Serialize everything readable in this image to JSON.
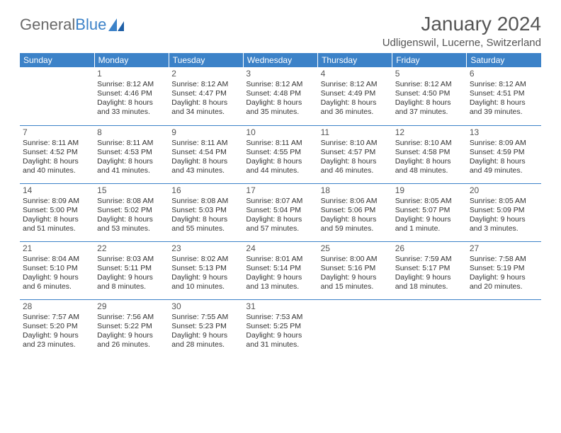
{
  "logo": {
    "word1": "General",
    "word2": "Blue"
  },
  "title": "January 2024",
  "location": "Udligenswil, Lucerne, Switzerland",
  "colors": {
    "header_bg": "#3c82c8",
    "header_text": "#ffffff",
    "body_text": "#333333",
    "title_text": "#555555",
    "logo_gray": "#6a6a6a",
    "logo_blue": "#3c82c8",
    "rule": "#3c82c8",
    "background": "#ffffff"
  },
  "day_headers": [
    "Sunday",
    "Monday",
    "Tuesday",
    "Wednesday",
    "Thursday",
    "Friday",
    "Saturday"
  ],
  "weeks": [
    [
      null,
      {
        "n": "1",
        "sr": "8:12 AM",
        "ss": "4:46 PM",
        "dl": "8 hours and 33 minutes."
      },
      {
        "n": "2",
        "sr": "8:12 AM",
        "ss": "4:47 PM",
        "dl": "8 hours and 34 minutes."
      },
      {
        "n": "3",
        "sr": "8:12 AM",
        "ss": "4:48 PM",
        "dl": "8 hours and 35 minutes."
      },
      {
        "n": "4",
        "sr": "8:12 AM",
        "ss": "4:49 PM",
        "dl": "8 hours and 36 minutes."
      },
      {
        "n": "5",
        "sr": "8:12 AM",
        "ss": "4:50 PM",
        "dl": "8 hours and 37 minutes."
      },
      {
        "n": "6",
        "sr": "8:12 AM",
        "ss": "4:51 PM",
        "dl": "8 hours and 39 minutes."
      }
    ],
    [
      {
        "n": "7",
        "sr": "8:11 AM",
        "ss": "4:52 PM",
        "dl": "8 hours and 40 minutes."
      },
      {
        "n": "8",
        "sr": "8:11 AM",
        "ss": "4:53 PM",
        "dl": "8 hours and 41 minutes."
      },
      {
        "n": "9",
        "sr": "8:11 AM",
        "ss": "4:54 PM",
        "dl": "8 hours and 43 minutes."
      },
      {
        "n": "10",
        "sr": "8:11 AM",
        "ss": "4:55 PM",
        "dl": "8 hours and 44 minutes."
      },
      {
        "n": "11",
        "sr": "8:10 AM",
        "ss": "4:57 PM",
        "dl": "8 hours and 46 minutes."
      },
      {
        "n": "12",
        "sr": "8:10 AM",
        "ss": "4:58 PM",
        "dl": "8 hours and 48 minutes."
      },
      {
        "n": "13",
        "sr": "8:09 AM",
        "ss": "4:59 PM",
        "dl": "8 hours and 49 minutes."
      }
    ],
    [
      {
        "n": "14",
        "sr": "8:09 AM",
        "ss": "5:00 PM",
        "dl": "8 hours and 51 minutes."
      },
      {
        "n": "15",
        "sr": "8:08 AM",
        "ss": "5:02 PM",
        "dl": "8 hours and 53 minutes."
      },
      {
        "n": "16",
        "sr": "8:08 AM",
        "ss": "5:03 PM",
        "dl": "8 hours and 55 minutes."
      },
      {
        "n": "17",
        "sr": "8:07 AM",
        "ss": "5:04 PM",
        "dl": "8 hours and 57 minutes."
      },
      {
        "n": "18",
        "sr": "8:06 AM",
        "ss": "5:06 PM",
        "dl": "8 hours and 59 minutes."
      },
      {
        "n": "19",
        "sr": "8:05 AM",
        "ss": "5:07 PM",
        "dl": "9 hours and 1 minute."
      },
      {
        "n": "20",
        "sr": "8:05 AM",
        "ss": "5:09 PM",
        "dl": "9 hours and 3 minutes."
      }
    ],
    [
      {
        "n": "21",
        "sr": "8:04 AM",
        "ss": "5:10 PM",
        "dl": "9 hours and 6 minutes."
      },
      {
        "n": "22",
        "sr": "8:03 AM",
        "ss": "5:11 PM",
        "dl": "9 hours and 8 minutes."
      },
      {
        "n": "23",
        "sr": "8:02 AM",
        "ss": "5:13 PM",
        "dl": "9 hours and 10 minutes."
      },
      {
        "n": "24",
        "sr": "8:01 AM",
        "ss": "5:14 PM",
        "dl": "9 hours and 13 minutes."
      },
      {
        "n": "25",
        "sr": "8:00 AM",
        "ss": "5:16 PM",
        "dl": "9 hours and 15 minutes."
      },
      {
        "n": "26",
        "sr": "7:59 AM",
        "ss": "5:17 PM",
        "dl": "9 hours and 18 minutes."
      },
      {
        "n": "27",
        "sr": "7:58 AM",
        "ss": "5:19 PM",
        "dl": "9 hours and 20 minutes."
      }
    ],
    [
      {
        "n": "28",
        "sr": "7:57 AM",
        "ss": "5:20 PM",
        "dl": "9 hours and 23 minutes."
      },
      {
        "n": "29",
        "sr": "7:56 AM",
        "ss": "5:22 PM",
        "dl": "9 hours and 26 minutes."
      },
      {
        "n": "30",
        "sr": "7:55 AM",
        "ss": "5:23 PM",
        "dl": "9 hours and 28 minutes."
      },
      {
        "n": "31",
        "sr": "7:53 AM",
        "ss": "5:25 PM",
        "dl": "9 hours and 31 minutes."
      },
      null,
      null,
      null
    ]
  ]
}
